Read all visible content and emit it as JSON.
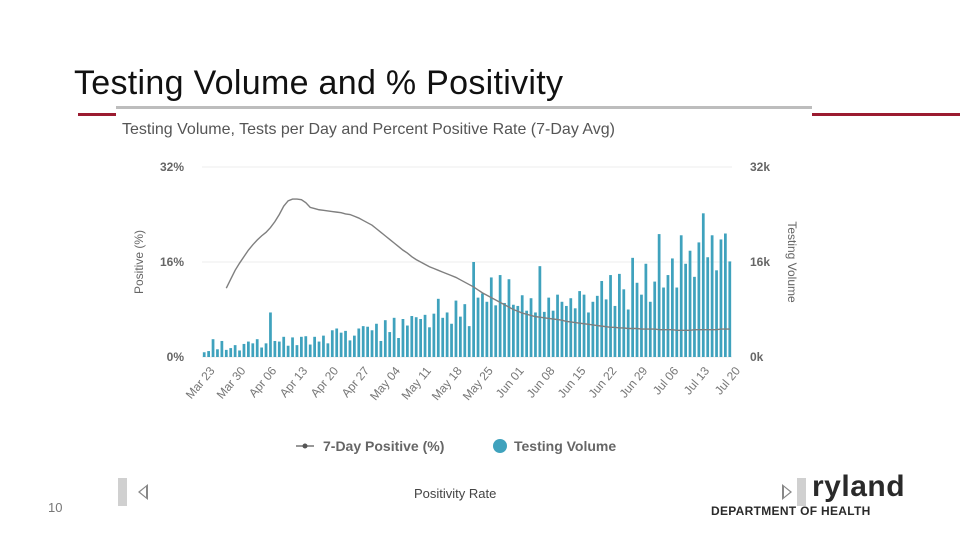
{
  "slide": {
    "title": "Testing Volume and % Positivity",
    "number": "10",
    "accent_color": "#9b1b30"
  },
  "logo": {
    "text": "ryland",
    "subtitle": "DEPARTMENT OF HEALTH"
  },
  "controls": {
    "positivity_rate_label": "Positivity Rate"
  },
  "chart_data": {
    "type": "bar+line",
    "title": "Testing Volume, Tests per Day and Percent Positive Rate (7-Day Avg)",
    "ylabel_left": "Positive (%)",
    "ylabel_right": "Testing Volume",
    "yticks_left": [
      "32%",
      "16%",
      "0%"
    ],
    "yticks_right": [
      "32k",
      "16k",
      "0k"
    ],
    "ylim_left": [
      0,
      32
    ],
    "ylim_right": [
      0,
      32000
    ],
    "x_tick_labels": [
      "Mar 23",
      "Mar 30",
      "Apr 06",
      "Apr 13",
      "Apr 20",
      "Apr 27",
      "May 04",
      "May 11",
      "May 18",
      "May 25",
      "Jun 01",
      "Jun 08",
      "Jun 15",
      "Jun 22",
      "Jun 29",
      "Jul 06",
      "Jul 13",
      "Jul 20"
    ],
    "x_start_label": "Mar 23",
    "legend": [
      "7-Day Positive (%)",
      "Testing Volume"
    ],
    "bar_color": "#3fa2bd",
    "line_color": "#7f7f7f",
    "testing_volume": [
      800,
      1000,
      3000,
      1300,
      2700,
      1200,
      1500,
      2000,
      1100,
      2200,
      2600,
      2300,
      3000,
      1600,
      2300,
      7500,
      2700,
      2600,
      3400,
      1900,
      3300,
      2000,
      3400,
      3500,
      2100,
      3400,
      2600,
      3600,
      2300,
      4500,
      4800,
      4100,
      4400,
      2800,
      3600,
      4800,
      5200,
      5100,
      4500,
      5600,
      2700,
      6200,
      4200,
      6600,
      3200,
      6400,
      5300,
      6900,
      6700,
      6400,
      7100,
      5000,
      7300,
      9800,
      6600,
      7500,
      5600,
      9500,
      6800,
      8900,
      5200,
      16000,
      10000,
      10700,
      9300,
      13400,
      8700,
      13800,
      9100,
      13100,
      8800,
      8600,
      10400,
      7800,
      9900,
      7500,
      15300,
      7600,
      10000,
      7800,
      10500,
      9300,
      8600,
      9900,
      8200,
      11100,
      10500,
      7500,
      9300,
      10300,
      12800,
      9700,
      13800,
      8600,
      14000,
      11400,
      8000,
      16700,
      12500,
      10500,
      15700,
      9300,
      12700,
      20700,
      11700,
      13800,
      16600,
      11700,
      20500,
      15700,
      17900,
      13500,
      19300,
      24200,
      16800,
      20500,
      14600,
      19800,
      20800,
      16100
    ],
    "positivity_start_index": 5,
    "positivity_pct": [
      11.6,
      13.1,
      14.6,
      15.8,
      16.9,
      18.0,
      18.9,
      19.7,
      20.4,
      21.0,
      21.8,
      22.8,
      24.0,
      25.4,
      26.3,
      26.6,
      26.6,
      26.5,
      26.0,
      25.2,
      25.0,
      24.8,
      24.7,
      24.6,
      24.5,
      24.4,
      24.3,
      24.1,
      24.0,
      23.7,
      23.4,
      23.0,
      22.6,
      22.2,
      21.6,
      21.0,
      20.4,
      19.8,
      19.2,
      18.6,
      18.0,
      17.5,
      16.9,
      16.4,
      16.0,
      15.6,
      15.2,
      14.9,
      14.6,
      14.3,
      14.0,
      13.7,
      13.4,
      13.0,
      12.6,
      12.2,
      11.8,
      11.3,
      10.8,
      10.4,
      10.0,
      9.6,
      9.2,
      8.8,
      8.4,
      8.0,
      7.7,
      7.4,
      7.2,
      7.0,
      6.8,
      6.7,
      6.6,
      6.5,
      6.4,
      6.3,
      6.2,
      6.0,
      5.9,
      5.8,
      5.7,
      5.6,
      5.5,
      5.4,
      5.3,
      5.2,
      5.1,
      5.0,
      5.0,
      4.9,
      4.9,
      4.8,
      4.8,
      4.8,
      4.7,
      4.7,
      4.7,
      4.7,
      4.6,
      4.6,
      4.6,
      4.6,
      4.5,
      4.5,
      4.5,
      4.5,
      4.6,
      4.6,
      4.6,
      4.6,
      4.6,
      4.6,
      4.7,
      4.7,
      4.7
    ]
  }
}
